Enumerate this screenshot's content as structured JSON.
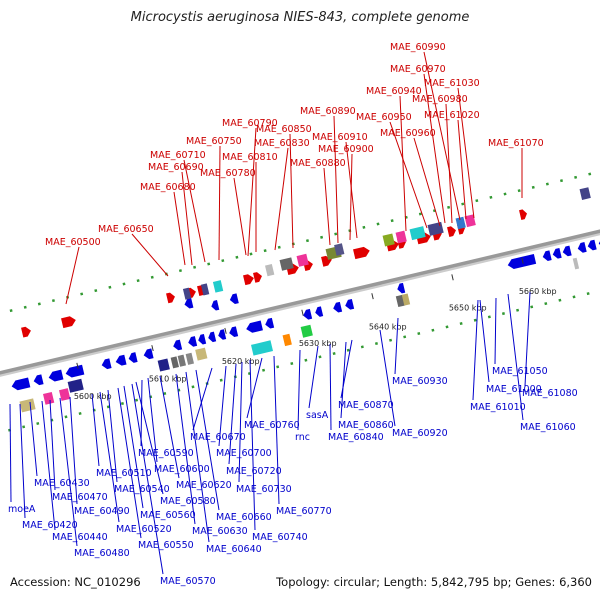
{
  "title": "Microcystis aeruginosa NIES-843, complete genome",
  "footer": {
    "accession": "Accession: NC_010296",
    "summary": "Topology: circular; Length: 5,842,795 bp; Genes: 6,360"
  },
  "colors": {
    "forward": "#e00000",
    "reverse": "#0000dd",
    "top_label": "#cc0000",
    "bottom_label": "#0000cc",
    "backbone": "#999999",
    "tick": "#339933"
  },
  "kbp_ticks": [
    "5600 kbp",
    "5610 kbp",
    "5620 kbp",
    "5630 kbp",
    "5640 kbp",
    "5650 kbp",
    "5660 kbp"
  ],
  "top_genes": [
    "MAE_60500",
    "MAE_60650",
    "MAE_60680",
    "MAE_60690",
    "MAE_60710",
    "MAE_60750",
    "MAE_60780",
    "MAE_60790",
    "MAE_60810",
    "MAE_60830",
    "MAE_60850",
    "MAE_60880",
    "MAE_60890",
    "MAE_60900",
    "MAE_60910",
    "MAE_60940",
    "MAE_60950",
    "MAE_60960",
    "MAE_60970",
    "MAE_60980",
    "MAE_60990",
    "MAE_61020",
    "MAE_61030",
    "MAE_61070"
  ],
  "bottom_genes": [
    "moeA",
    "MAE_60420",
    "MAE_60430",
    "MAE_60440",
    "MAE_60470",
    "MAE_60480",
    "MAE_60490",
    "MAE_60510",
    "MAE_60520",
    "MAE_60540",
    "MAE_60550",
    "MAE_60560",
    "MAE_60570",
    "MAE_60580",
    "MAE_60590",
    "MAE_60600",
    "MAE_60620",
    "MAE_60630",
    "MAE_60640",
    "MAE_60660",
    "MAE_60670",
    "MAE_60700",
    "MAE_60720",
    "MAE_60730",
    "MAE_60740",
    "MAE_60760",
    "MAE_60770",
    "rnc",
    "sasA",
    "MAE_60840",
    "MAE_60860",
    "MAE_60870",
    "MAE_60920",
    "MAE_60930",
    "MAE_61000",
    "MAE_61010",
    "MAE_61050",
    "MAE_61060",
    "MAE_61080"
  ]
}
